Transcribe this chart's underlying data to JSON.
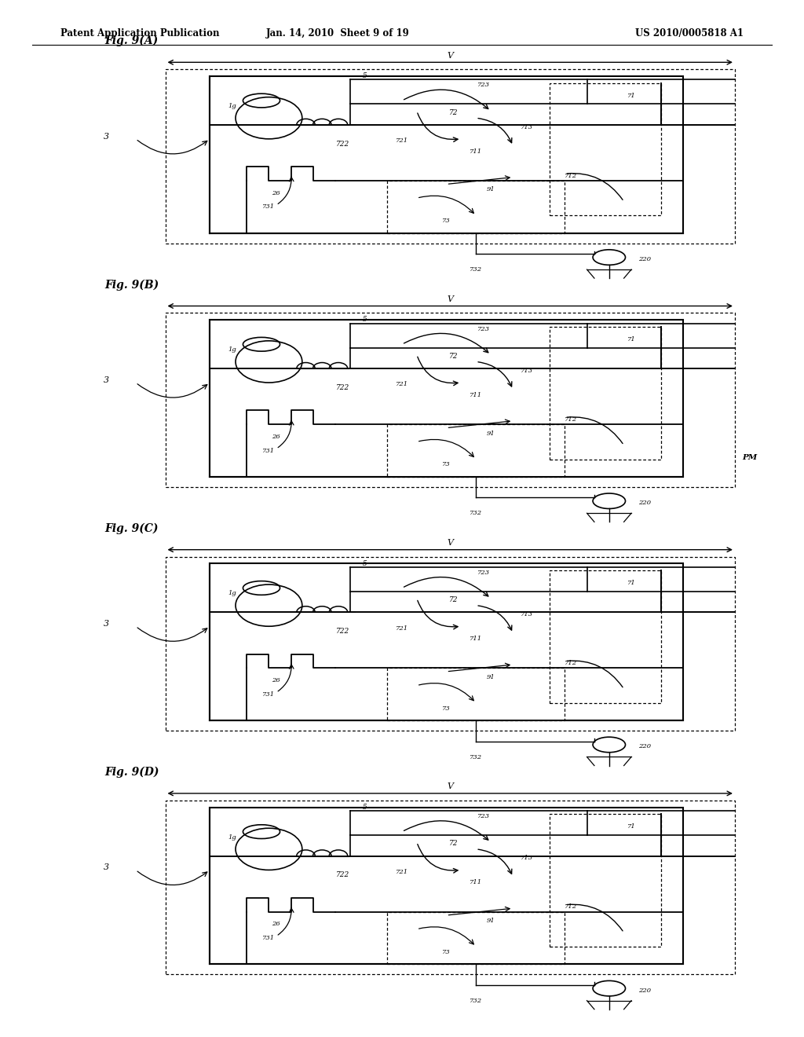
{
  "title_header": "Patent Application Publication",
  "date_header": "Jan. 14, 2010  Sheet 9 of 19",
  "patent_header": "US 2010/0005818 A1",
  "panels": [
    "Fig. 9(A)",
    "Fig. 9(B)",
    "Fig. 9(C)",
    "Fig. 9(D)"
  ],
  "panel_notes": [
    "",
    "PM",
    "",
    ""
  ],
  "bg_color": "#ffffff",
  "line_color": "#000000"
}
